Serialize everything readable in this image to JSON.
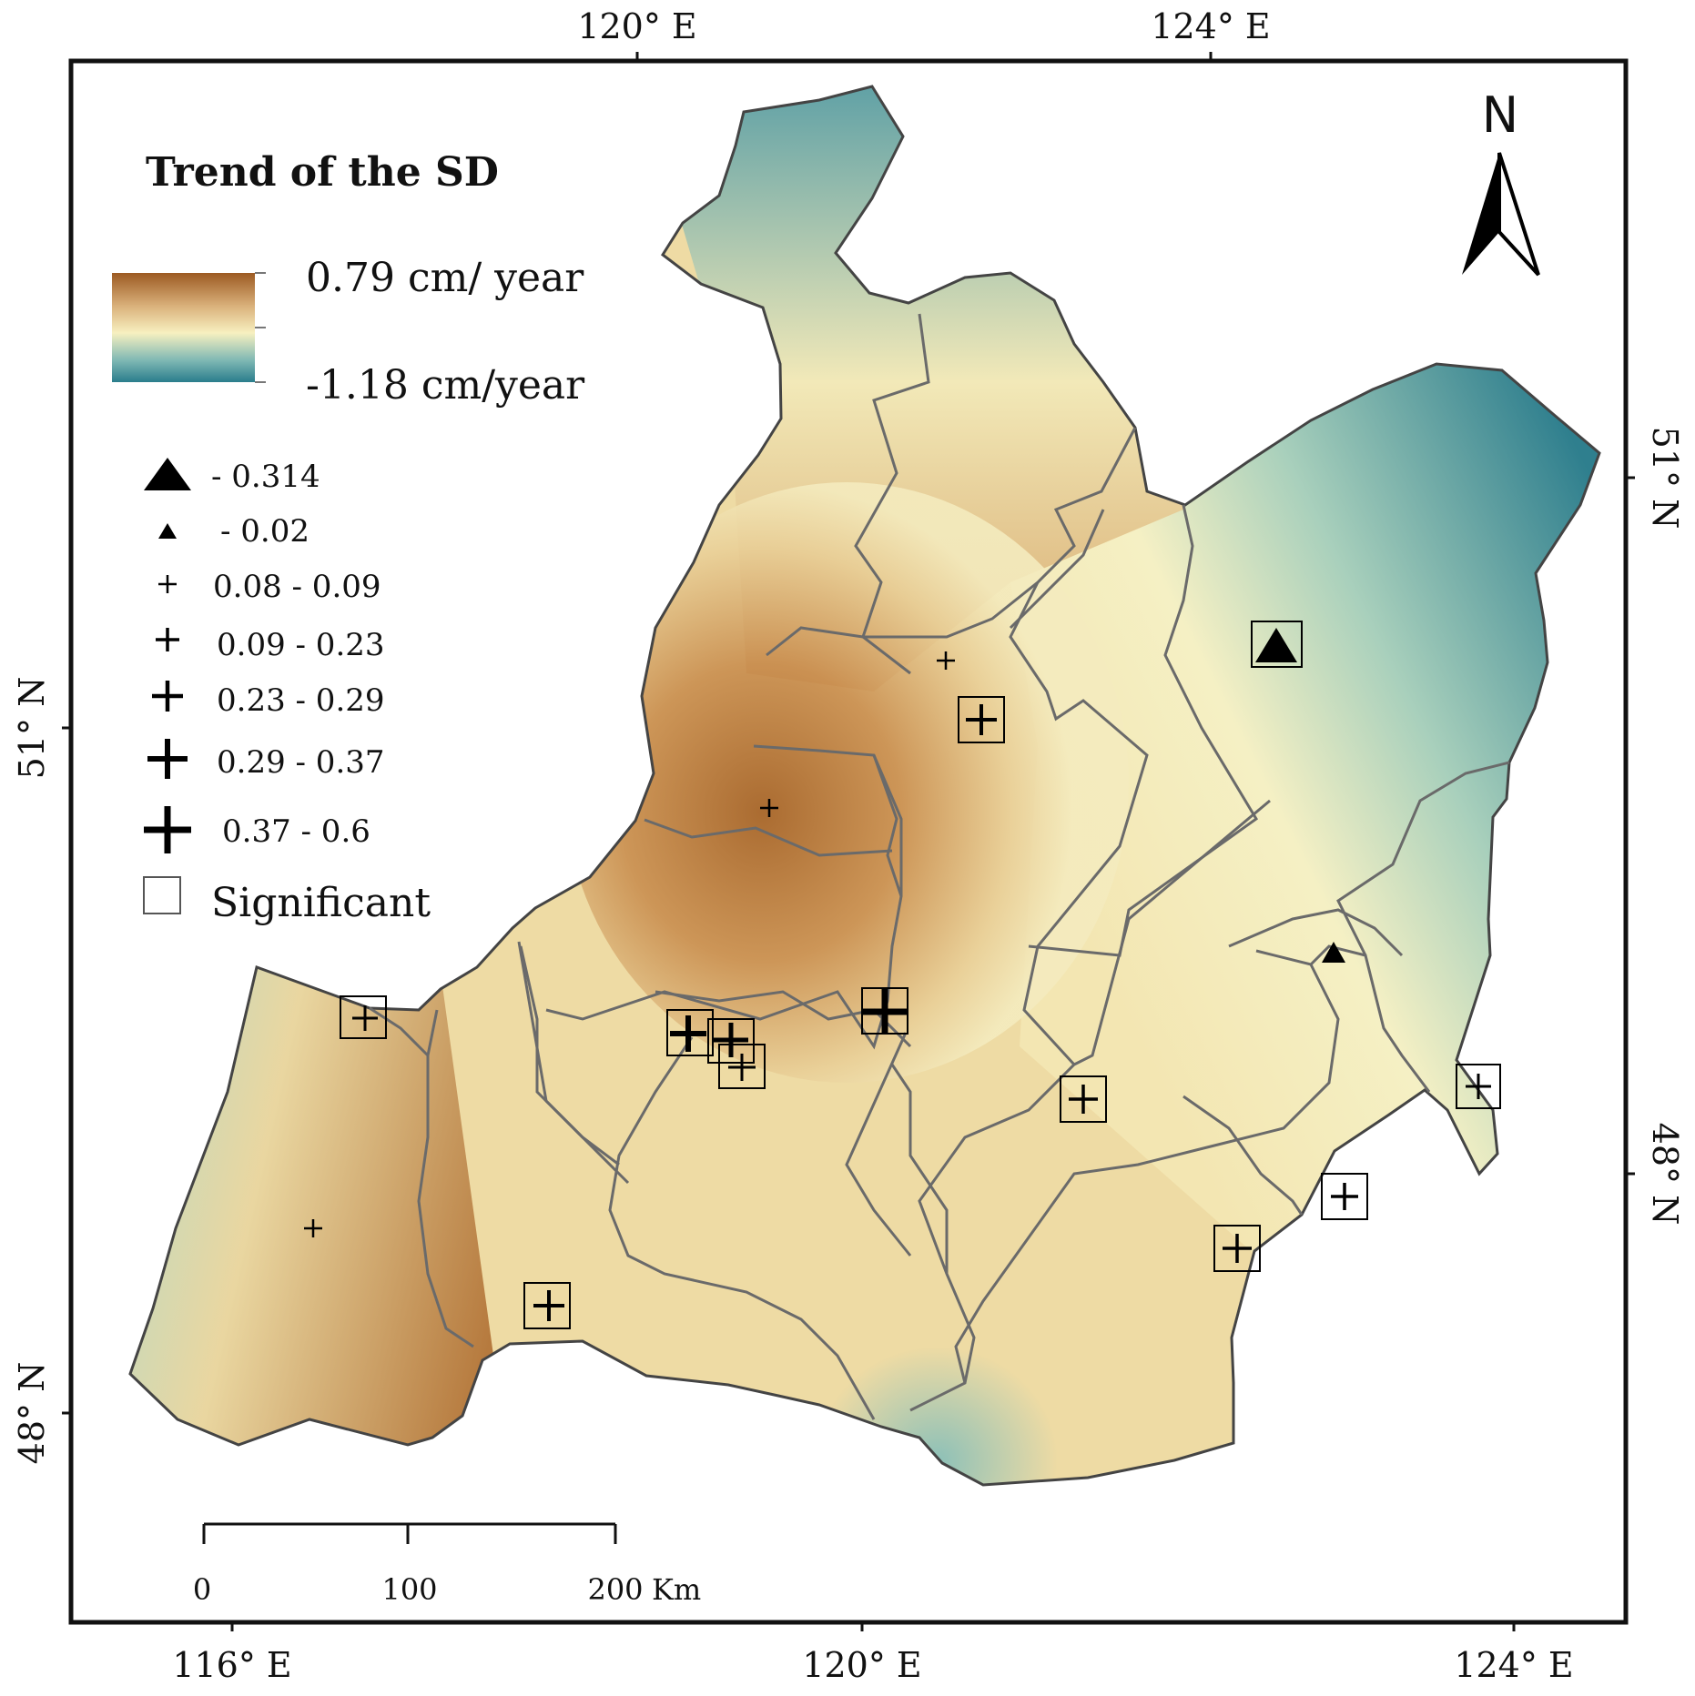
{
  "legend": {
    "title": "Trend of the SD",
    "ramp_high": "0.79 cm/ year",
    "ramp_low": "-1.18 cm/year",
    "ramp_colors": [
      "#9c5a22",
      "#d9b07a",
      "#f7f0c0",
      "#7fb8b4",
      "#2a7d8c"
    ],
    "classes": [
      {
        "symbol": "triangle-large",
        "label": "- 0.314"
      },
      {
        "symbol": "triangle-small",
        "label": "- 0.02"
      },
      {
        "symbol": "plus-1",
        "label": "0.08 - 0.09"
      },
      {
        "symbol": "plus-2",
        "label": "0.09 - 0.23"
      },
      {
        "symbol": "plus-3",
        "label": "0.23 - 0.29"
      },
      {
        "symbol": "plus-4",
        "label": "0.29 - 0.37"
      },
      {
        "symbol": "plus-5",
        "label": "0.37 - 0.6"
      },
      {
        "symbol": "square-outline",
        "label": "Significant"
      }
    ]
  },
  "north_arrow": {
    "label": "N"
  },
  "graticule": {
    "top": [
      "120° E",
      "124° E"
    ],
    "bottom": [
      "116° E",
      "120° E",
      "124° E"
    ],
    "left": [
      "51° N",
      "48° N"
    ],
    "right": [
      "51° N",
      "48° N"
    ]
  },
  "scale_bar": {
    "ticks": [
      "0",
      "100",
      "200"
    ],
    "unit": "Km"
  },
  "colors": {
    "frame": "#111111",
    "boundary": "#6a6a6a",
    "symbol": "#000000"
  }
}
